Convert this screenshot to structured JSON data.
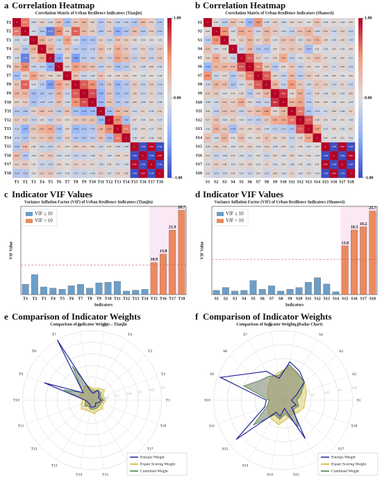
{
  "chart_data": [
    {
      "type": "heatmap",
      "label": "a",
      "title": "Correlation Heatmap",
      "subtitle": "Correlation Matrix of Urban Resilience Indicators (Tianjin)",
      "categories": [
        "T1",
        "T2",
        "T3",
        "T4",
        "T5",
        "T6",
        "T7",
        "T8",
        "T9",
        "T10",
        "T11",
        "T12",
        "T13",
        "T14",
        "T15",
        "T16",
        "T17",
        "T18"
      ],
      "values": [
        [
          1,
          0.62,
          -0.09,
          0.12,
          -0.09,
          0.26,
          -0.34,
          0.17,
          0.28,
          0.09,
          -0.23,
          0.13,
          -0.16,
          -0.16,
          -0.26,
          0.25,
          0.11,
          -0.25
        ],
        [
          0.62,
          1,
          -0.07,
          -0.24,
          -0.74,
          0.56,
          0.11,
          0.69,
          0.27,
          0.13,
          -0.25,
          0.13,
          -0.47,
          -0.27,
          0.25,
          -0.23,
          0.14,
          -0.23
        ],
        [
          -0.09,
          -0.07,
          1,
          0.32,
          0.17,
          -0.15,
          0.42,
          -0.05,
          -0.33,
          -0.29,
          0.11,
          -0.14,
          0.18,
          0.13,
          0.05,
          -0.03,
          0.02,
          -0.01
        ],
        [
          0.12,
          -0.24,
          0.32,
          1,
          0.36,
          -0.14,
          0.17,
          -0.19,
          -0.27,
          -0.18,
          0.23,
          0.05,
          0.32,
          0.17,
          -0.12,
          0.12,
          -0.13,
          0.14
        ],
        [
          -0.09,
          -0.74,
          0.17,
          0.36,
          1,
          -0.51,
          0.08,
          -0.58,
          -0.21,
          -0.16,
          0.19,
          -0.14,
          0.41,
          0.26,
          -0.17,
          0.16,
          -0.15,
          0.16
        ],
        [
          0.26,
          0.56,
          -0.15,
          -0.14,
          -0.51,
          1,
          0.09,
          0.44,
          0.31,
          0.22,
          -0.18,
          0.11,
          -0.29,
          -0.21,
          0.1,
          -0.09,
          0.08,
          -0.09
        ],
        [
          -0.34,
          0.11,
          0.42,
          0.17,
          0.08,
          0.09,
          1,
          0.22,
          -0.12,
          -0.08,
          0.21,
          0.04,
          0.06,
          0.12,
          0.03,
          -0.04,
          0.02,
          -0.03
        ],
        [
          0.17,
          0.69,
          -0.05,
          -0.19,
          -0.58,
          0.44,
          0.22,
          1,
          0.71,
          0.52,
          -0.31,
          0.16,
          -0.39,
          -0.24,
          0.15,
          -0.14,
          0.13,
          -0.14
        ],
        [
          0.28,
          0.27,
          -0.33,
          -0.27,
          -0.21,
          0.31,
          -0.12,
          0.71,
          1,
          0.76,
          -0.44,
          0.19,
          -0.31,
          -0.27,
          0.12,
          -0.11,
          0.1,
          -0.12
        ],
        [
          0.09,
          0.13,
          -0.29,
          -0.18,
          -0.16,
          0.22,
          -0.08,
          0.52,
          0.76,
          1,
          -0.38,
          0.21,
          -0.24,
          -0.19,
          0.09,
          -0.08,
          0.07,
          -0.08
        ],
        [
          -0.23,
          -0.25,
          0.11,
          0.23,
          0.19,
          -0.18,
          0.21,
          -0.31,
          -0.44,
          -0.38,
          1,
          -0.36,
          0.28,
          0.22,
          -0.11,
          0.1,
          -0.09,
          0.11
        ],
        [
          0.13,
          0.13,
          -0.14,
          0.05,
          -0.14,
          0.11,
          0.04,
          0.16,
          0.19,
          0.21,
          -0.36,
          1,
          0.54,
          -0.32,
          0.07,
          -0.06,
          0.05,
          -0.07
        ],
        [
          -0.16,
          -0.47,
          0.18,
          0.32,
          0.41,
          -0.29,
          0.06,
          -0.39,
          -0.31,
          -0.24,
          0.28,
          0.54,
          1,
          0.61,
          -0.09,
          0.08,
          -0.07,
          0.09
        ],
        [
          -0.16,
          -0.27,
          0.13,
          0.17,
          0.26,
          -0.21,
          0.12,
          -0.24,
          -0.27,
          -0.19,
          0.22,
          -0.32,
          0.61,
          1,
          -0.08,
          0.07,
          -0.06,
          0.08
        ],
        [
          -0.26,
          0.25,
          0.05,
          -0.12,
          -0.17,
          0.1,
          0.03,
          0.15,
          0.12,
          0.09,
          -0.11,
          0.07,
          -0.09,
          -0.08,
          1,
          -0.99,
          0.99,
          -0.99
        ],
        [
          0.25,
          -0.23,
          -0.03,
          0.12,
          0.16,
          -0.09,
          -0.04,
          -0.14,
          -0.11,
          -0.08,
          0.1,
          -0.06,
          0.08,
          0.07,
          -0.99,
          1,
          -0.99,
          0.99
        ],
        [
          0.11,
          0.14,
          0.02,
          -0.13,
          -0.15,
          0.08,
          0.02,
          0.13,
          0.1,
          0.07,
          -0.09,
          0.05,
          -0.07,
          -0.06,
          0.99,
          -0.99,
          1,
          -0.99
        ],
        [
          -0.25,
          -0.23,
          -0.01,
          0.14,
          0.16,
          -0.09,
          -0.03,
          -0.14,
          -0.12,
          -0.08,
          0.11,
          -0.07,
          0.09,
          0.08,
          -0.99,
          0.99,
          -0.99,
          1
        ]
      ],
      "zlim": [
        -1,
        1
      ],
      "zticks": [
        {
          "value": 1,
          "label": "1.00"
        },
        {
          "value": 0,
          "label": "0.00"
        },
        {
          "value": -1,
          "label": "-1.00"
        }
      ],
      "colormap": "coolwarm"
    },
    {
      "type": "heatmap",
      "label": "b",
      "title": "Correlation Heatmap",
      "subtitle": "Correlation Matrix of Urban Resilience Indicators (Shanwei)",
      "categories": [
        "S1",
        "S2",
        "S3",
        "S4",
        "S5",
        "S6",
        "S7",
        "S8",
        "S9",
        "S10",
        "S11",
        "S12",
        "S13",
        "S14",
        "S15",
        "S16",
        "S17",
        "S18"
      ],
      "values": [
        [
          1,
          0.05,
          -0.18,
          0.22,
          0.08,
          -0.41,
          0.52,
          -0.09,
          0.12,
          -0.08,
          0.05,
          0.07,
          -0.01,
          0.21,
          -0.05,
          0.07,
          -0.03,
          0.05
        ],
        [
          0.05,
          1,
          0.52,
          -0.07,
          0.39,
          0.3,
          -0.11,
          0.29,
          0.15,
          -0.09,
          -0.16,
          0.21,
          0.32,
          -0.08,
          0.14,
          -0.12,
          0.13,
          -0.14
        ],
        [
          -0.18,
          0.52,
          1,
          0.06,
          0.11,
          0.29,
          0.07,
          0.23,
          -0.03,
          0.19,
          0.21,
          -0.06,
          0.18,
          0.31,
          0.09,
          -0.08,
          0.08,
          -0.09
        ],
        [
          0.22,
          -0.07,
          0.06,
          1,
          -0.12,
          0.28,
          -0.23,
          -0.27,
          0.04,
          0.13,
          0.17,
          0.12,
          -0.34,
          0.02,
          -0.06,
          0.05,
          -0.04,
          0.06
        ],
        [
          0.08,
          0.39,
          0.11,
          -0.12,
          1,
          0.74,
          0.17,
          -0.07,
          0.09,
          0.36,
          -0.14,
          -0.03,
          0.11,
          0.23,
          0.07,
          -0.06,
          0.05,
          -0.07
        ],
        [
          -0.41,
          0.3,
          0.29,
          0.28,
          0.74,
          1,
          0.61,
          0.18,
          -0.23,
          0.06,
          0.17,
          -0.14,
          0.09,
          -0.02,
          0.11,
          -0.1,
          0.09,
          -0.11
        ],
        [
          0.52,
          -0.11,
          0.07,
          -0.23,
          0.17,
          0.61,
          1,
          0.71,
          0.09,
          -0.15,
          0.26,
          -0.19,
          0.15,
          0.08,
          -0.04,
          0.03,
          -0.02,
          0.04
        ],
        [
          -0.09,
          0.29,
          0.23,
          -0.27,
          -0.07,
          0.18,
          0.71,
          1,
          0.29,
          -0.13,
          0.46,
          0.17,
          -0.09,
          0.2,
          0.12,
          -0.11,
          0.1,
          -0.12
        ],
        [
          0.12,
          0.15,
          -0.03,
          0.04,
          0.09,
          -0.23,
          0.09,
          0.29,
          1,
          0.84,
          0.05,
          0.36,
          -0.17,
          0.09,
          -0.08,
          0.07,
          -0.06,
          0.08
        ],
        [
          -0.08,
          -0.09,
          0.19,
          0.13,
          0.36,
          0.06,
          -0.15,
          -0.13,
          0.84,
          1,
          0.29,
          0.41,
          -0.19,
          0.08,
          0.06,
          -0.05,
          0.04,
          -0.06
        ],
        [
          0.05,
          -0.16,
          0.21,
          0.17,
          -0.14,
          0.17,
          0.26,
          0.46,
          0.05,
          0.29,
          1,
          0.62,
          -0.27,
          -0.13,
          -0.1,
          0.09,
          -0.08,
          0.1
        ],
        [
          0.07,
          0.21,
          -0.06,
          0.12,
          -0.03,
          -0.14,
          -0.19,
          0.17,
          0.36,
          0.41,
          0.62,
          1,
          0.72,
          0.09,
          0.05,
          -0.04,
          0.03,
          -0.05
        ],
        [
          -0.01,
          0.32,
          0.18,
          -0.34,
          0.11,
          0.09,
          0.15,
          -0.09,
          -0.17,
          -0.19,
          -0.27,
          0.72,
          1,
          0.43,
          -0.07,
          0.06,
          -0.05,
          0.07
        ],
        [
          0.21,
          -0.08,
          0.31,
          0.02,
          0.23,
          -0.02,
          0.08,
          0.2,
          0.09,
          0.08,
          -0.13,
          0.09,
          0.43,
          1,
          0.04,
          -0.03,
          0.02,
          -0.04
        ],
        [
          -0.05,
          0.14,
          0.09,
          -0.06,
          0.07,
          0.11,
          -0.04,
          0.12,
          -0.08,
          0.06,
          -0.1,
          0.05,
          -0.07,
          0.04,
          1,
          -0.99,
          0.99,
          -0.99
        ],
        [
          0.07,
          -0.12,
          -0.08,
          0.05,
          -0.06,
          -0.1,
          0.03,
          -0.11,
          0.07,
          -0.05,
          0.09,
          -0.04,
          0.06,
          -0.03,
          -0.99,
          1,
          -0.99,
          0.99
        ],
        [
          -0.03,
          0.13,
          0.08,
          -0.04,
          0.05,
          0.09,
          -0.02,
          0.1,
          -0.06,
          0.04,
          -0.08,
          0.03,
          -0.05,
          0.02,
          0.99,
          -0.99,
          1,
          -0.99
        ],
        [
          0.05,
          -0.14,
          -0.09,
          0.06,
          -0.07,
          -0.11,
          0.04,
          -0.12,
          0.08,
          -0.06,
          0.1,
          -0.05,
          0.07,
          -0.04,
          -0.99,
          0.99,
          -0.99,
          1
        ]
      ],
      "zlim": [
        -1,
        1
      ],
      "zticks": [
        {
          "value": 1,
          "label": "1.00"
        },
        {
          "value": 0,
          "label": "0.00"
        },
        {
          "value": -1,
          "label": "-1.00"
        }
      ],
      "colormap": "coolwarm"
    },
    {
      "type": "bar",
      "label": "c",
      "title": "Indicator VIF Values",
      "subtitle": "Variance Inflation Factor (VIF) of Urban Resilience Indicators (Tianjin)",
      "x_label": "Indicators",
      "y_label": "VIF Value",
      "categories": [
        "T1",
        "T2",
        "T3",
        "T4",
        "T5",
        "T6",
        "T7",
        "T8",
        "T9",
        "T10",
        "T11",
        "T12",
        "T13",
        "T14",
        "T15",
        "T16",
        "T17",
        "T18"
      ],
      "values": [
        3.5,
        6.8,
        2.6,
        2.2,
        1.8,
        3.0,
        3.5,
        2.2,
        4.0,
        4.2,
        4.5,
        1.2,
        1.5,
        1.8,
        10.9,
        13.8,
        21.9,
        28.7
      ],
      "ylim": [
        0,
        30
      ],
      "threshold": 10,
      "color_below": "#6d9ec7",
      "color_above": "#ec8a5e",
      "legend": [
        "VIF ≤ 10",
        "VIF > 10"
      ],
      "legend_position": "upper left"
    },
    {
      "type": "bar",
      "label": "d",
      "title": "Indicator VIF Values",
      "subtitle": "Variance Inflation Factor (VIF) of Urban Resilience Indicators (Shanwei)",
      "x_label": "Indicators",
      "y_label": "VIF Value",
      "categories": [
        "S1",
        "S2",
        "S3",
        "S4",
        "S5",
        "S6",
        "S7",
        "S8",
        "S9",
        "S10",
        "S11",
        "S12",
        "S13",
        "S14",
        "S15",
        "S16",
        "S17",
        "S18"
      ],
      "values": [
        1.2,
        2.0,
        1.0,
        1.2,
        4.0,
        1.5,
        2.5,
        1.0,
        1.5,
        2.0,
        3.5,
        4.8,
        3.0,
        0.8,
        13.8,
        18.3,
        19.2,
        23.7
      ],
      "ylim": [
        0,
        25
      ],
      "threshold": 10,
      "color_below": "#6d9ec7",
      "color_above": "#ec8a5e",
      "legend": [
        "VIF ≤ 10",
        "VIF > 10"
      ],
      "legend_position": "upper left"
    },
    {
      "type": "radar",
      "label": "e",
      "title": "Comparison of Indicator Weights",
      "subtitle": "Comparison of Indicator Weights – Tianjin",
      "categories": [
        "T1",
        "T2",
        "T3",
        "T4",
        "T5",
        "T6",
        "T7",
        "T8",
        "T9",
        "T10",
        "T11",
        "T12",
        "T13",
        "T14",
        "T15",
        "T16",
        "T17",
        "T18"
      ],
      "rlim": [
        0,
        0.3
      ],
      "rticks": [
        0.05,
        0.1,
        0.15,
        0.2,
        0.25,
        0.3
      ],
      "legend_position": "lower right",
      "series": [
        {
          "name": "Entropy Weight",
          "color": "#24249a",
          "values": [
            0.04,
            0.03,
            0.04,
            0.05,
            0.03,
            0.04,
            0.3,
            0.05,
            0.22,
            0.03,
            0.02,
            0.02,
            0.02,
            0.03,
            0.03,
            0.03,
            0.02,
            0.03
          ]
        },
        {
          "name": "Expert Scoring Weight",
          "color": "#c9b41c",
          "values": [
            0.06,
            0.05,
            0.07,
            0.06,
            0.05,
            0.06,
            0.07,
            0.05,
            0.06,
            0.04,
            0.05,
            0.06,
            0.05,
            0.05,
            0.06,
            0.05,
            0.06,
            0.05
          ]
        },
        {
          "name": "Combined Weight",
          "color": "#3c7d3c",
          "values": [
            0.05,
            0.04,
            0.05,
            0.05,
            0.04,
            0.05,
            0.17,
            0.05,
            0.13,
            0.03,
            0.03,
            0.04,
            0.03,
            0.04,
            0.04,
            0.04,
            0.04,
            0.04
          ]
        }
      ]
    },
    {
      "type": "radar",
      "label": "f",
      "title": "Comparison of Indicator Weights",
      "subtitle": "Comparison of Indicator Weights (Radar Chart)",
      "categories": [
        "S1",
        "S2",
        "S3",
        "S4",
        "S5",
        "S6",
        "S7",
        "S8",
        "S9",
        "S10",
        "S11",
        "S12",
        "S13",
        "S14",
        "S15",
        "S16",
        "S17",
        "S18"
      ],
      "rlim": [
        0,
        0.25
      ],
      "rticks": [
        0.05,
        0.1,
        0.15,
        0.2,
        0.25
      ],
      "legend_position": "lower right",
      "series": [
        {
          "name": "Entropy Weight",
          "color": "#24249a",
          "values": [
            0.03,
            0.05,
            0.1,
            0.12,
            0.14,
            0.08,
            0.12,
            0.15,
            0.24,
            0.06,
            0.07,
            0.22,
            0.05,
            0.06,
            0.03,
            0.16,
            0.04,
            0.05
          ]
        },
        {
          "name": "Expert Scoring Weight",
          "color": "#c9b41c",
          "values": [
            0.08,
            0.09,
            0.1,
            0.11,
            0.12,
            0.1,
            0.09,
            0.07,
            0.06,
            0.05,
            0.06,
            0.07,
            0.08,
            0.09,
            0.07,
            0.06,
            0.07,
            0.08
          ]
        },
        {
          "name": "Combined Weight",
          "color": "#3c7d3c",
          "values": [
            0.05,
            0.07,
            0.1,
            0.11,
            0.13,
            0.09,
            0.1,
            0.11,
            0.15,
            0.05,
            0.06,
            0.14,
            0.06,
            0.07,
            0.05,
            0.11,
            0.05,
            0.06
          ]
        }
      ]
    }
  ]
}
